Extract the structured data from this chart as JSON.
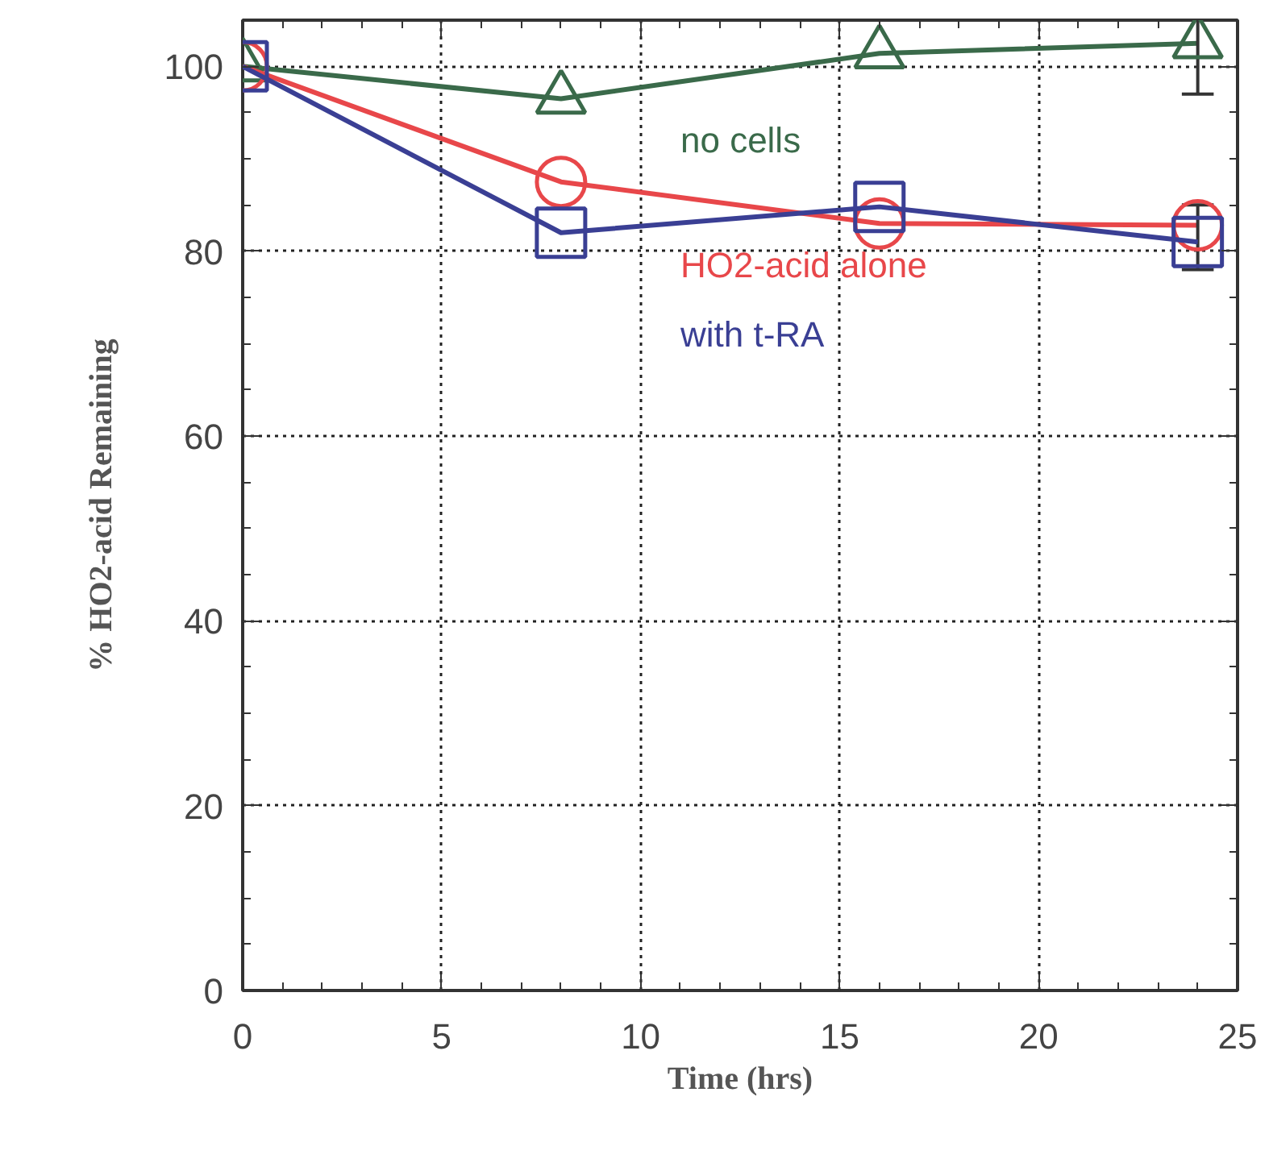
{
  "chart_data": {
    "type": "line",
    "xlabel": "Time (hrs)",
    "ylabel": "% HO2-acid Remaining",
    "xlim": [
      0,
      25
    ],
    "ylim": [
      0,
      105
    ],
    "xticks": [
      0,
      5,
      10,
      15,
      20,
      25
    ],
    "yticks": [
      0,
      20,
      40,
      60,
      80,
      100
    ],
    "grid": true,
    "series": [
      {
        "name": "no cells",
        "color": "#3a6a4a",
        "marker": "triangle",
        "x": [
          0,
          8,
          16,
          24
        ],
        "values": [
          100,
          96.5,
          101.4,
          102.5
        ],
        "errors": [
          null,
          null,
          null,
          [
            97,
            105
          ]
        ]
      },
      {
        "name": "HO2-acid alone",
        "color": "#e8474a",
        "marker": "circle",
        "x": [
          0,
          8,
          16,
          24
        ],
        "values": [
          100,
          87.5,
          83,
          82.8
        ],
        "errors": [
          null,
          null,
          null,
          [
            78,
            85
          ]
        ]
      },
      {
        "name": "with t-RA",
        "color": "#3a3f94",
        "marker": "square",
        "x": [
          0,
          8,
          16,
          24
        ],
        "values": [
          100,
          82,
          84.8,
          81
        ]
      }
    ]
  }
}
